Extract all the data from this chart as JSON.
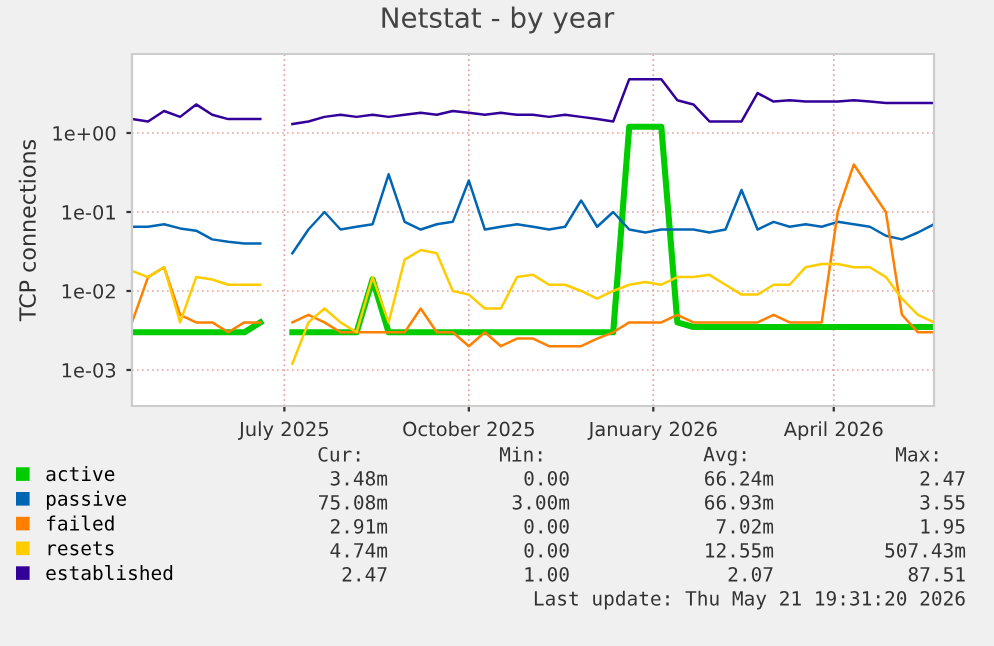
{
  "chart_data": {
    "type": "line",
    "title": "Netstat - by year",
    "ylabel": "TCP connections",
    "log": "y",
    "grid": true,
    "legend": "bottom",
    "marker": "none",
    "line_style": "solid",
    "x": [
      "2025-04-16",
      "2025-04-24",
      "2025-05-02",
      "2025-05-10",
      "2025-05-18",
      "2025-05-26",
      "2025-06-03",
      "2025-06-11",
      "2025-06-19",
      "2025-06-27",
      "2025-07-05",
      "2025-07-13",
      "2025-07-21",
      "2025-07-29",
      "2025-08-06",
      "2025-08-14",
      "2025-08-22",
      "2025-08-30",
      "2025-09-07",
      "2025-09-15",
      "2025-09-23",
      "2025-10-01",
      "2025-10-09",
      "2025-10-17",
      "2025-10-25",
      "2025-11-02",
      "2025-11-10",
      "2025-11-18",
      "2025-11-26",
      "2025-12-04",
      "2025-12-12",
      "2025-12-20",
      "2025-12-28",
      "2026-01-05",
      "2026-01-13",
      "2026-01-21",
      "2026-01-29",
      "2026-02-06",
      "2026-02-14",
      "2026-02-22",
      "2026-03-02",
      "2026-03-10",
      "2026-03-18",
      "2026-03-26",
      "2026-04-03",
      "2026-04-11",
      "2026-04-19",
      "2026-04-27",
      "2026-05-05",
      "2026-05-13",
      "2026-05-21"
    ],
    "xlim": [
      "2025-04-16",
      "2026-05-21"
    ],
    "xticks": [
      {
        "value": "2025-07-01",
        "label": "July 2025"
      },
      {
        "value": "2025-10-01",
        "label": "October 2025"
      },
      {
        "value": "2026-01-01",
        "label": "January 2026"
      },
      {
        "value": "2026-04-01",
        "label": "April 2026"
      }
    ],
    "ylim": [
      0.00035,
      10
    ],
    "yticks": [
      {
        "value": 0.001,
        "label": "1e-03"
      },
      {
        "value": 0.01,
        "label": "1e-02"
      },
      {
        "value": 0.1,
        "label": "1e-01"
      },
      {
        "value": 1,
        "label": "1e+00"
      }
    ],
    "series": [
      {
        "name": "active",
        "color": "#00cc00",
        "values": [
          0.003,
          0.003,
          0.003,
          0.003,
          0.003,
          0.003,
          0.003,
          0.003,
          0.004,
          null,
          0.003,
          0.003,
          0.003,
          0.003,
          0.003,
          0.014,
          0.003,
          0.003,
          0.003,
          0.003,
          0.003,
          0.003,
          0.003,
          0.003,
          0.003,
          0.003,
          0.003,
          0.003,
          0.003,
          0.003,
          0.003,
          1.2,
          1.2,
          1.2,
          0.004,
          0.0035,
          0.0035,
          0.0035,
          0.0035,
          0.0035,
          0.0035,
          0.0035,
          0.0035,
          0.0035,
          0.0035,
          0.0035,
          0.0035,
          0.0035,
          0.0035,
          0.0035,
          0.0035
        ]
      },
      {
        "name": "passive",
        "color": "#0066b3",
        "values": [
          0.065,
          0.065,
          0.07,
          0.062,
          0.058,
          0.045,
          0.042,
          0.04,
          0.04,
          null,
          0.03,
          0.06,
          0.1,
          0.06,
          0.065,
          0.07,
          0.3,
          0.075,
          0.06,
          0.07,
          0.075,
          0.25,
          0.06,
          0.065,
          0.07,
          0.065,
          0.06,
          0.065,
          0.14,
          0.065,
          0.1,
          0.06,
          0.055,
          0.06,
          0.06,
          0.06,
          0.055,
          0.06,
          0.19,
          0.06,
          0.075,
          0.065,
          0.07,
          0.065,
          0.075,
          0.07,
          0.065,
          0.05,
          0.045,
          0.055,
          0.07
        ]
      },
      {
        "name": "failed",
        "color": "#ff8000",
        "values": [
          0.004,
          0.015,
          0.02,
          0.005,
          0.004,
          0.004,
          0.003,
          0.004,
          0.004,
          null,
          0.004,
          0.005,
          0.004,
          0.003,
          0.003,
          0.003,
          0.003,
          0.003,
          0.006,
          0.003,
          0.003,
          0.002,
          0.003,
          0.002,
          0.0025,
          0.0025,
          0.002,
          0.002,
          0.002,
          0.0025,
          0.003,
          0.004,
          0.004,
          0.004,
          0.005,
          0.004,
          0.004,
          0.004,
          0.004,
          0.004,
          0.005,
          0.004,
          0.004,
          0.004,
          0.1,
          0.4,
          0.2,
          0.1,
          0.005,
          0.003,
          0.003
        ]
      },
      {
        "name": "resets",
        "color": "#ffcc00",
        "values": [
          0.018,
          0.015,
          0.02,
          0.004,
          0.015,
          0.014,
          0.012,
          0.012,
          0.012,
          null,
          0.0012,
          0.004,
          0.006,
          0.004,
          0.003,
          0.015,
          0.004,
          0.025,
          0.033,
          0.03,
          0.01,
          0.009,
          0.006,
          0.006,
          0.015,
          0.016,
          0.012,
          0.012,
          0.01,
          0.008,
          0.01,
          0.012,
          0.013,
          0.012,
          0.015,
          0.015,
          0.016,
          0.012,
          0.009,
          0.009,
          0.012,
          0.012,
          0.02,
          0.022,
          0.022,
          0.02,
          0.02,
          0.015,
          0.008,
          0.005,
          0.004
        ]
      },
      {
        "name": "established",
        "color": "#330099",
        "values": [
          1.5,
          1.4,
          1.9,
          1.6,
          2.3,
          1.7,
          1.5,
          1.5,
          1.5,
          null,
          1.3,
          1.4,
          1.6,
          1.7,
          1.6,
          1.7,
          1.6,
          1.7,
          1.8,
          1.7,
          1.9,
          1.8,
          1.7,
          1.8,
          1.7,
          1.7,
          1.6,
          1.7,
          1.6,
          1.5,
          1.4,
          4.8,
          4.8,
          4.8,
          2.6,
          2.3,
          1.4,
          1.4,
          1.4,
          3.2,
          2.5,
          2.6,
          2.5,
          2.5,
          2.5,
          2.6,
          2.5,
          2.4,
          2.4,
          2.4,
          2.4
        ]
      }
    ],
    "annotations": [
      "Cur:",
      "Min:",
      "Avg:",
      "Max:",
      "3.48m",
      "0.00",
      "66.24m",
      "2.47",
      "75.08m",
      "3.00m",
      "66.93m",
      "3.55",
      "2.91m",
      "0.00",
      "7.02m",
      "1.95",
      "4.74m",
      "0.00",
      "12.55m",
      "507.43m",
      "2.47",
      "1.00",
      "2.07",
      "87.51",
      "Last update: Thu May 21 19:31:20 2026"
    ]
  }
}
